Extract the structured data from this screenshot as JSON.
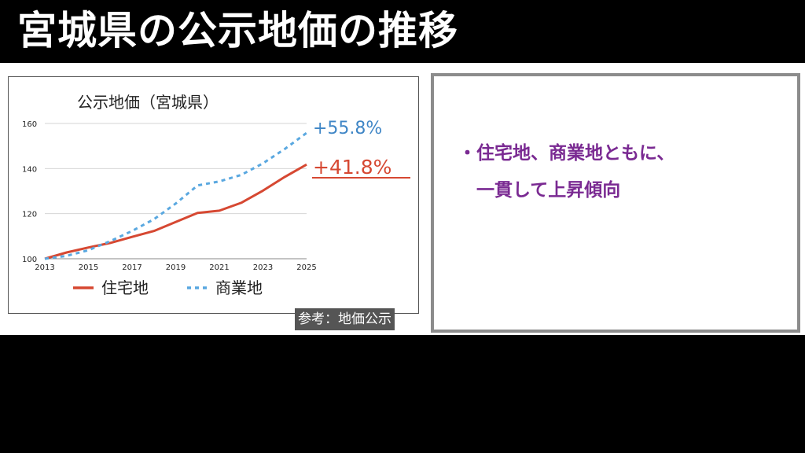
{
  "slide": {
    "title": "宮城県の公示地価の推移",
    "source": "参考：地価公示",
    "bullets": [
      "・住宅地、商業地ともに、",
      "一貫して上昇傾向"
    ]
  },
  "colors": {
    "residential": "#d64832",
    "commercial": "#5aa8e0",
    "bullet_text": "#7a2a92",
    "commercial_pct": "#3f86c6"
  },
  "chart_data": {
    "type": "line",
    "title": "公示地価（宮城県）",
    "x": [
      2013,
      2014,
      2015,
      2016,
      2017,
      2018,
      2019,
      2020,
      2021,
      2022,
      2023,
      2024,
      2025
    ],
    "xticks": [
      "2013",
      "2015",
      "2017",
      "2019",
      "2021",
      "2023",
      "2025"
    ],
    "yticks": [
      "100",
      "120",
      "140",
      "160"
    ],
    "ylim": [
      100,
      160
    ],
    "xlim": [
      2013,
      2025
    ],
    "grid": true,
    "legend": "bottom",
    "series": [
      {
        "name": "住宅地",
        "style": "solid",
        "values": [
          100,
          102.8,
          105,
          107,
          109.7,
          112.3,
          116.3,
          120.3,
          121.3,
          124.8,
          130.2,
          136.3,
          141.8
        ],
        "end_label": "+41.8%"
      },
      {
        "name": "商業地",
        "style": "dashed",
        "values": [
          100,
          101.3,
          103.8,
          107.8,
          112.3,
          117.5,
          124.5,
          132.5,
          134.3,
          137.2,
          142.3,
          148.7,
          155.8
        ],
        "end_label": "+55.8%"
      }
    ]
  }
}
